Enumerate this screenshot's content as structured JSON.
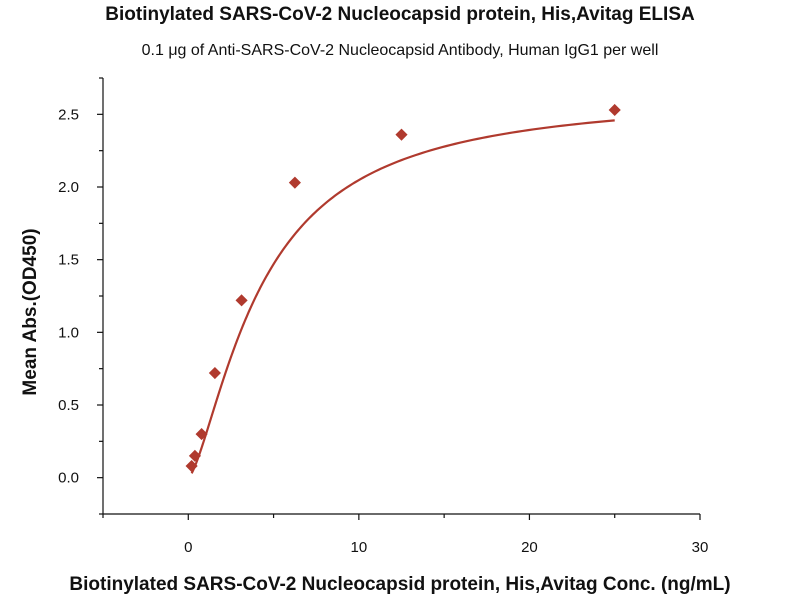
{
  "chart_data": {
    "type": "scatter",
    "title": "Biotinylated SARS-CoV-2 Nucleocapsid protein, His,Avitag ELISA",
    "subtitle": "0.1 μg of Anti-SARS-CoV-2 Nucleocapsid Antibody, Human IgG1 per well",
    "xlabel": "Biotinylated SARS-CoV-2 Nucleocapsid protein, His,Avitag Conc. (ng/mL)",
    "ylabel": "Mean Abs.(OD450)",
    "xlim": [
      -5,
      30
    ],
    "ylim": [
      -0.25,
      2.75
    ],
    "x_ticks": [
      0,
      10,
      20,
      30
    ],
    "x_tick_labels": [
      "0",
      "10",
      "20",
      "30"
    ],
    "y_ticks": [
      0.0,
      0.5,
      1.0,
      1.5,
      2.0,
      2.5
    ],
    "y_tick_labels": [
      "0.0",
      "0.5",
      "1.0",
      "1.5",
      "2.0",
      "2.5"
    ],
    "grid": false,
    "marker": "diamond",
    "color": "#b03a2e",
    "series": [
      {
        "name": "Mean Abs.",
        "x": [
          0.195,
          0.39,
          0.78,
          1.56,
          3.125,
          6.25,
          12.5,
          25
        ],
        "y": [
          0.08,
          0.15,
          0.3,
          0.72,
          1.22,
          2.03,
          2.36,
          2.53
        ]
      }
    ],
    "fit_curve": {
      "type": "4PL",
      "bottom": 0.0,
      "top": 2.65,
      "ec50": 4.3,
      "hill": 1.45
    }
  }
}
